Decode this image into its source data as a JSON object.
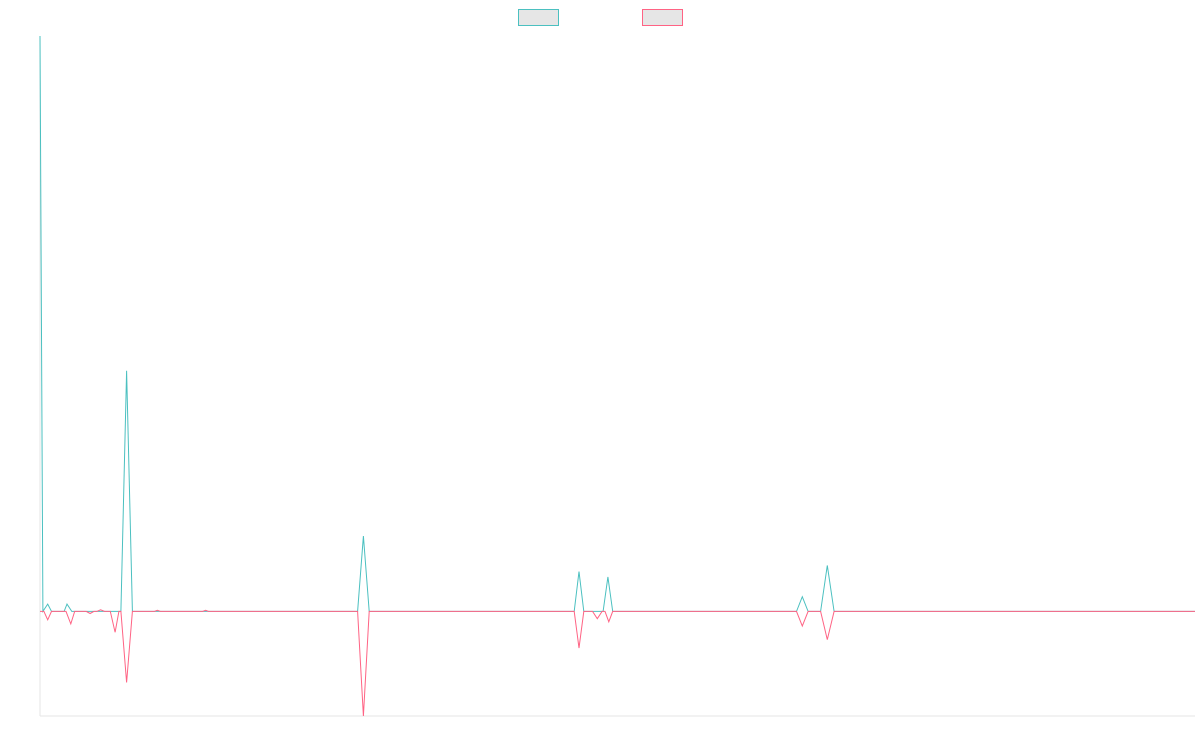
{
  "chart_data": {
    "type": "line",
    "title": "",
    "xlabel": "",
    "ylabel": "",
    "grid": false,
    "legend_position": "top-center",
    "x_domain": [
      0,
      1200
    ],
    "ylim": [
      -1.0,
      5.5
    ],
    "series": [
      {
        "name": "",
        "color": "#4bc0c0",
        "fill": "#e6e6e6",
        "values": [
          [
            0,
            5.5
          ],
          [
            3,
            0.0
          ],
          [
            8,
            0.07
          ],
          [
            12,
            0.0
          ],
          [
            25,
            0.0
          ],
          [
            28,
            0.07
          ],
          [
            33,
            0.0
          ],
          [
            84,
            0.0
          ],
          [
            90,
            2.3
          ],
          [
            96,
            0.0
          ],
          [
            330,
            0.0
          ],
          [
            336,
            0.72
          ],
          [
            342,
            0.0
          ],
          [
            555,
            0.0
          ],
          [
            560,
            0.38
          ],
          [
            565,
            0.0
          ],
          [
            585,
            0.0
          ],
          [
            590,
            0.33
          ],
          [
            595,
            0.0
          ],
          [
            786,
            0.0
          ],
          [
            792,
            0.14
          ],
          [
            798,
            0.0
          ],
          [
            811,
            0.0
          ],
          [
            818,
            0.44
          ],
          [
            825,
            0.0
          ],
          [
            1200,
            0.0
          ]
        ]
      },
      {
        "name": "",
        "color": "#ff6384",
        "fill": "#e6e6e6",
        "values": [
          [
            0,
            0.0
          ],
          [
            4,
            0.0
          ],
          [
            8,
            -0.08
          ],
          [
            12,
            0.0
          ],
          [
            27,
            0.0
          ],
          [
            32,
            -0.12
          ],
          [
            36,
            0.0
          ],
          [
            48,
            0.0
          ],
          [
            52,
            -0.02
          ],
          [
            56,
            0.0
          ],
          [
            59,
            0.0
          ],
          [
            63,
            0.015
          ],
          [
            67,
            0.0
          ],
          [
            73,
            0.0
          ],
          [
            78,
            -0.2
          ],
          [
            82,
            0.0
          ],
          [
            84,
            0.0
          ],
          [
            90,
            -0.68
          ],
          [
            96,
            0.0
          ],
          [
            119,
            0.0
          ],
          [
            122,
            0.01
          ],
          [
            125,
            0.0
          ],
          [
            169,
            0.0
          ],
          [
            172,
            0.01
          ],
          [
            175,
            0.0
          ],
          [
            330,
            0.0
          ],
          [
            336,
            -1.0
          ],
          [
            342,
            0.0
          ],
          [
            555,
            0.0
          ],
          [
            560,
            -0.35
          ],
          [
            565,
            0.0
          ],
          [
            574,
            0.0
          ],
          [
            579,
            -0.07
          ],
          [
            584,
            0.0
          ],
          [
            587,
            0.0
          ],
          [
            591,
            -0.1
          ],
          [
            595,
            0.0
          ],
          [
            786,
            0.0
          ],
          [
            792,
            -0.14
          ],
          [
            798,
            0.0
          ],
          [
            811,
            0.0
          ],
          [
            818,
            -0.27
          ],
          [
            825,
            0.0
          ],
          [
            1200,
            0.0
          ]
        ]
      }
    ]
  }
}
